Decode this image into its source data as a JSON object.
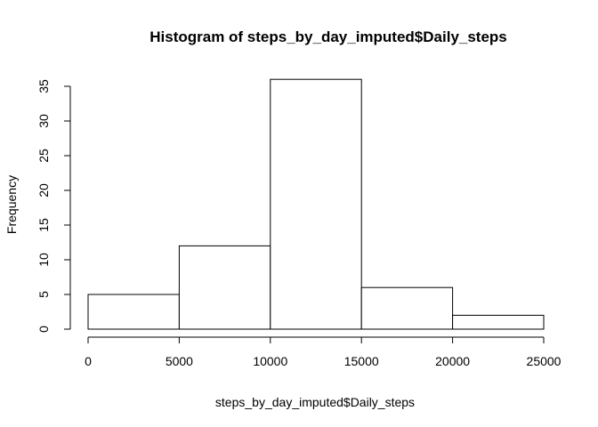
{
  "chart_data": {
    "type": "bar",
    "histogram": true,
    "title": "Histogram of steps_by_day_imputed$Daily_steps",
    "xlabel": "steps_by_day_imputed$Daily_steps",
    "ylabel": "Frequency",
    "bins": [
      {
        "from": 0,
        "to": 5000,
        "value": 5
      },
      {
        "from": 5000,
        "to": 10000,
        "value": 12
      },
      {
        "from": 10000,
        "to": 15000,
        "value": 36
      },
      {
        "from": 15000,
        "to": 20000,
        "value": 6
      },
      {
        "from": 20000,
        "to": 25000,
        "value": 2
      }
    ],
    "xlim": [
      0,
      25000
    ],
    "ylim": [
      0,
      35
    ],
    "x_ticks": [
      "0",
      "5000",
      "10000",
      "15000",
      "20000",
      "25000"
    ],
    "y_ticks": [
      "0",
      "5",
      "10",
      "15",
      "20",
      "25",
      "30",
      "35"
    ],
    "bar_fill": "#ffffff",
    "bar_stroke": "#000000",
    "grid": false,
    "legend": "none"
  }
}
